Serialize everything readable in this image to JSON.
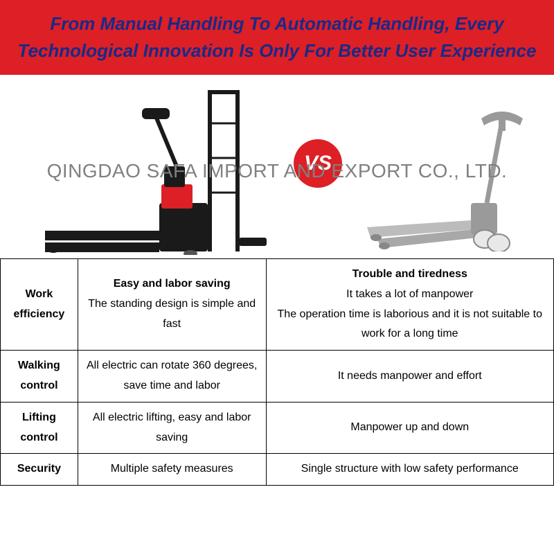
{
  "header": {
    "text": "From Manual Handling To Automatic Handling, Every Technological Innovation Is Only For Better User Experience",
    "bg_color": "#dd1f26",
    "text_color": "#172a88"
  },
  "vs_badge": {
    "text": "VS",
    "bg_color": "#dd1f26",
    "text_color": "#ffffff"
  },
  "watermark": {
    "text": "QINGDAO SAFA IMPORT AND EXPORT CO., LTD.",
    "color": "#808080"
  },
  "table": {
    "rows": [
      {
        "header": "Work efficiency",
        "left_title": "Easy and labor saving",
        "left_body": "The standing design is simple and fast",
        "right_title": "Trouble and tiredness",
        "right_body": "It takes a lot of manpower\nThe operation time is laborious and it is not suitable to work for a long time"
      },
      {
        "header": "Walking control",
        "left_title": "",
        "left_body": "All electric can rotate 360 degrees, save time and labor",
        "right_title": "",
        "right_body": "It needs manpower and effort"
      },
      {
        "header": "Lifting control",
        "left_title": "",
        "left_body": "All electric lifting, easy and labor saving",
        "right_title": "",
        "right_body": "Manpower up and down"
      },
      {
        "header": "Security",
        "left_title": "",
        "left_body": "Multiple safety measures",
        "right_title": "",
        "right_body": "Single structure with low safety performance"
      }
    ]
  },
  "colors": {
    "truck_dark": "#1a1a1a",
    "truck_red": "#dd1f26",
    "truck_gray": "#9a9a9a",
    "truck_light": "#c8c8c8"
  }
}
